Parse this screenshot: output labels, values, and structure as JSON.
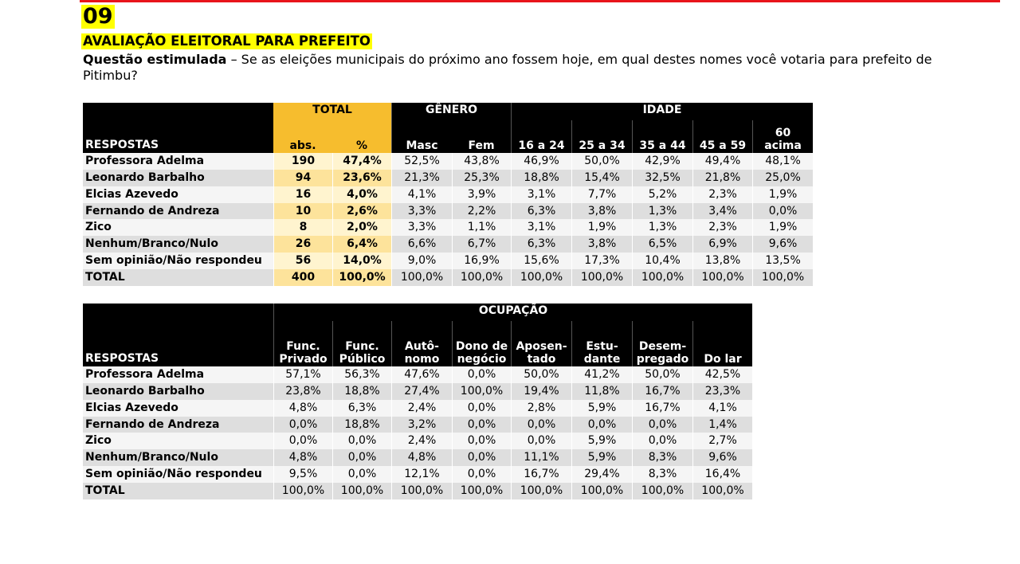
{
  "header": {
    "number": "09",
    "title": "AVALIAÇÃO ELEITORAL PARA PREFEITO",
    "question_label": "Questão estimulada",
    "question_text": " – Se as eleições municipais do próximo ano fossem hoje, em qual destes nomes você votaria para prefeito de Pitimbu?"
  },
  "colors": {
    "accent_red": "#e8141b",
    "highlight_yellow": "#ffff00",
    "gold_header": "#f6bd2e",
    "header_black": "#000000"
  },
  "table1": {
    "respostas_label": "RESPOSTAS",
    "group_total": "TOTAL",
    "group_genero": "GÊNERO",
    "group_idade": "IDADE",
    "columns": [
      "abs.",
      "%",
      "Masc",
      "Fem",
      "16 a 24",
      "25 a 34",
      "35 a 44",
      "45 a 59"
    ],
    "col_60_line1": "60",
    "col_60_line2": "acima",
    "rows": [
      {
        "label": "Professora Adelma",
        "values": [
          "190",
          "47,4%",
          "52,5%",
          "43,8%",
          "46,9%",
          "50,0%",
          "42,9%",
          "49,4%",
          "48,1%"
        ]
      },
      {
        "label": "Leonardo Barbalho",
        "values": [
          "94",
          "23,6%",
          "21,3%",
          "25,3%",
          "18,8%",
          "15,4%",
          "32,5%",
          "21,8%",
          "25,0%"
        ]
      },
      {
        "label": "Elcias Azevedo",
        "values": [
          "16",
          "4,0%",
          "4,1%",
          "3,9%",
          "3,1%",
          "7,7%",
          "5,2%",
          "2,3%",
          "1,9%"
        ]
      },
      {
        "label": "Fernando de Andreza",
        "values": [
          "10",
          "2,6%",
          "3,3%",
          "2,2%",
          "6,3%",
          "3,8%",
          "1,3%",
          "3,4%",
          "0,0%"
        ]
      },
      {
        "label": "Zico",
        "values": [
          "8",
          "2,0%",
          "3,3%",
          "1,1%",
          "3,1%",
          "1,9%",
          "1,3%",
          "2,3%",
          "1,9%"
        ]
      },
      {
        "label": "Nenhum/Branco/Nulo",
        "values": [
          "26",
          "6,4%",
          "6,6%",
          "6,7%",
          "6,3%",
          "3,8%",
          "6,5%",
          "6,9%",
          "9,6%"
        ]
      },
      {
        "label": "Sem opinião/Não respondeu",
        "values": [
          "56",
          "14,0%",
          "9,0%",
          "16,9%",
          "15,6%",
          "17,3%",
          "10,4%",
          "13,8%",
          "13,5%"
        ]
      },
      {
        "label": "TOTAL",
        "values": [
          "400",
          "100,0%",
          "100,0%",
          "100,0%",
          "100,0%",
          "100,0%",
          "100,0%",
          "100,0%",
          "100,0%"
        ]
      }
    ]
  },
  "table2": {
    "respostas_label": "RESPOSTAS",
    "group_ocupacao": "OCUPAÇÃO",
    "columns": [
      {
        "line1": "Func.",
        "line2": "Privado"
      },
      {
        "line1": "Func.",
        "line2": "Público"
      },
      {
        "line1": "Autô-",
        "line2": "nomo"
      },
      {
        "line1": "Dono de",
        "line2": "negócio"
      },
      {
        "line1": "Aposen-",
        "line2": "tado"
      },
      {
        "line1": "Estu-",
        "line2": "dante"
      },
      {
        "line1": "Desem-",
        "line2": "pregado"
      },
      {
        "line1": "",
        "line2": "Do lar"
      }
    ],
    "rows": [
      {
        "label": "Professora Adelma",
        "values": [
          "57,1%",
          "56,3%",
          "47,6%",
          "0,0%",
          "50,0%",
          "41,2%",
          "50,0%",
          "42,5%"
        ]
      },
      {
        "label": "Leonardo Barbalho",
        "values": [
          "23,8%",
          "18,8%",
          "27,4%",
          "100,0%",
          "19,4%",
          "11,8%",
          "16,7%",
          "23,3%"
        ]
      },
      {
        "label": "Elcias Azevedo",
        "values": [
          "4,8%",
          "6,3%",
          "2,4%",
          "0,0%",
          "2,8%",
          "5,9%",
          "16,7%",
          "4,1%"
        ]
      },
      {
        "label": "Fernando de Andreza",
        "values": [
          "0,0%",
          "18,8%",
          "3,2%",
          "0,0%",
          "0,0%",
          "0,0%",
          "0,0%",
          "1,4%"
        ]
      },
      {
        "label": "Zico",
        "values": [
          "0,0%",
          "0,0%",
          "2,4%",
          "0,0%",
          "0,0%",
          "5,9%",
          "0,0%",
          "2,7%"
        ]
      },
      {
        "label": "Nenhum/Branco/Nulo",
        "values": [
          "4,8%",
          "0,0%",
          "4,8%",
          "0,0%",
          "11,1%",
          "5,9%",
          "8,3%",
          "9,6%"
        ]
      },
      {
        "label": "Sem opinião/Não respondeu",
        "values": [
          "9,5%",
          "0,0%",
          "12,1%",
          "0,0%",
          "16,7%",
          "29,4%",
          "8,3%",
          "16,4%"
        ]
      },
      {
        "label": "TOTAL",
        "values": [
          "100,0%",
          "100,0%",
          "100,0%",
          "100,0%",
          "100,0%",
          "100,0%",
          "100,0%",
          "100,0%"
        ]
      }
    ]
  }
}
